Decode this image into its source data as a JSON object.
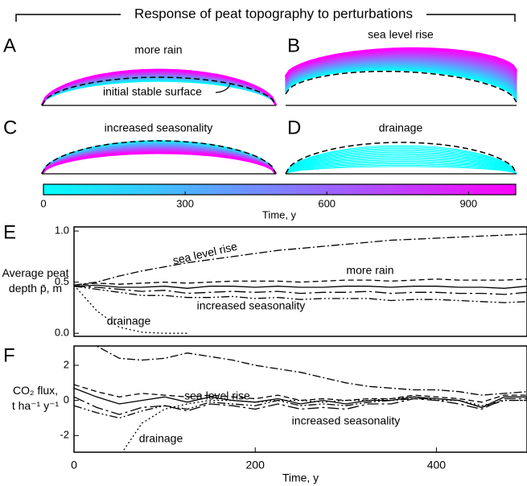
{
  "title": "Response of peat topography to perturbations",
  "profiles": [
    {
      "letter": "A",
      "label": "more rain",
      "annotation": "initial stable surface"
    },
    {
      "letter": "B",
      "label": "sea level rise"
    },
    {
      "letter": "C",
      "label": "increased seasonality"
    },
    {
      "letter": "D",
      "label": "drainage"
    }
  ],
  "colorbar": {
    "label": "Time, y",
    "xlim": [
      0,
      1000
    ],
    "xticks": [
      0,
      300,
      600,
      900
    ],
    "colors": [
      "#00ffff",
      "#ff00ff"
    ]
  },
  "chart_data": [
    {
      "type": "line",
      "letter": "E",
      "ylabel": [
        "Average peat",
        "depth p̄, m"
      ],
      "x": [
        0,
        25,
        50,
        75,
        100,
        125,
        150,
        175,
        200,
        225,
        250,
        275,
        300,
        325,
        350,
        375,
        400,
        425,
        450,
        475,
        500
      ],
      "xlim": [
        0,
        500
      ],
      "ylim": [
        -0.03,
        1.04
      ],
      "yticks": [
        {
          "value": 0,
          "label": "0.0"
        },
        {
          "value": 0.5,
          "label": "0.5"
        },
        {
          "value": 1,
          "label": "1.0"
        }
      ],
      "series": [
        {
          "name": "sea level rise",
          "color": "#000000",
          "dash": "dashdot",
          "values": [
            0.47,
            0.5,
            0.56,
            0.61,
            0.65,
            0.69,
            0.72,
            0.75,
            0.78,
            0.81,
            0.83,
            0.85,
            0.87,
            0.89,
            0.91,
            0.92,
            0.93,
            0.94,
            0.95,
            0.96,
            0.97
          ]
        },
        {
          "name": "more rain",
          "color": "#000000",
          "dash": "dashed",
          "values": [
            0.47,
            0.49,
            0.48,
            0.49,
            0.5,
            0.49,
            0.5,
            0.51,
            0.51,
            0.51,
            0.5,
            0.51,
            0.52,
            0.52,
            0.51,
            0.52,
            0.53,
            0.52,
            0.52,
            0.52,
            0.53
          ]
        },
        {
          "color": "#000000",
          "dash": "solid",
          "values": [
            0.46,
            0.47,
            0.45,
            0.45,
            0.46,
            0.44,
            0.46,
            0.46,
            0.45,
            0.46,
            0.45,
            0.45,
            0.46,
            0.46,
            0.45,
            0.46,
            0.46,
            0.45,
            0.45,
            0.44,
            0.46
          ]
        },
        {
          "name": "increased seasonality",
          "color": "#000000",
          "dash": "longdash",
          "values": [
            0.46,
            0.45,
            0.43,
            0.41,
            0.42,
            0.39,
            0.4,
            0.41,
            0.4,
            0.41,
            0.39,
            0.4,
            0.4,
            0.41,
            0.39,
            0.4,
            0.4,
            0.39,
            0.39,
            0.38,
            0.4
          ]
        },
        {
          "color": "#000000",
          "dash": "dashdotdot",
          "values": [
            0.46,
            0.43,
            0.4,
            0.37,
            0.37,
            0.35,
            0.35,
            0.36,
            0.34,
            0.35,
            0.33,
            0.34,
            0.34,
            0.34,
            0.32,
            0.33,
            0.33,
            0.32,
            0.31,
            0.3,
            0.31
          ]
        },
        {
          "name": "drainage",
          "color": "#000000",
          "dash": "dotted",
          "values": [
            0.47,
            0.22,
            0.06,
            0.01,
            0.0,
            0.0,
            null,
            null,
            null,
            null,
            null,
            null,
            null,
            null,
            null,
            null,
            null,
            null,
            null,
            null,
            null
          ]
        }
      ]
    },
    {
      "type": "line",
      "letter": "F",
      "ylabel": [
        "CO₂ flux,",
        "t ha⁻¹ y⁻¹"
      ],
      "xlabel": "Time, y",
      "x": [
        0,
        25,
        50,
        75,
        100,
        125,
        150,
        175,
        200,
        225,
        250,
        275,
        300,
        325,
        350,
        375,
        400,
        425,
        450,
        475,
        500
      ],
      "xlim": [
        0,
        500
      ],
      "xticks": [
        0,
        200,
        400
      ],
      "ylim": [
        -2.95,
        3.1
      ],
      "yticks": [
        -2,
        0,
        2
      ],
      "series": [
        {
          "name": "sea level rise",
          "color": "#000000",
          "dash": "dashdot",
          "values": [
            3.6,
            3.1,
            2.4,
            2.3,
            2.4,
            2.7,
            2.5,
            2.3,
            2.0,
            1.8,
            1.6,
            1.3,
            1.0,
            0.8,
            0.7,
            0.6,
            0.6,
            0.5,
            0.3,
            0.4,
            0.5
          ]
        },
        {
          "color": "#000000",
          "dash": "dashed",
          "values": [
            0.9,
            0.5,
            0.2,
            0.4,
            0.3,
            0.2,
            0.3,
            0.2,
            0.1,
            0.3,
            0.0,
            0.1,
            0.0,
            0.1,
            0.1,
            0.3,
            0.2,
            0.1,
            -0.1,
            0.3,
            0.3
          ]
        },
        {
          "color": "#000000",
          "dash": "solid",
          "values": [
            0.7,
            0.2,
            -0.2,
            0.0,
            0.2,
            -0.1,
            0.2,
            0.0,
            -0.1,
            0.1,
            -0.2,
            0.0,
            -0.2,
            0.0,
            0.0,
            0.2,
            0.1,
            0.0,
            -0.4,
            0.2,
            0.2
          ]
        },
        {
          "name": "increased seasonality",
          "color": "#000000",
          "dash": "longdash",
          "values": [
            0.2,
            -0.4,
            -0.8,
            -0.4,
            -0.3,
            -0.6,
            -0.2,
            -0.3,
            -0.5,
            -0.2,
            -0.5,
            -0.4,
            -0.5,
            -0.2,
            -0.2,
            0.1,
            0.0,
            -0.2,
            -0.5,
            0.1,
            0.1
          ]
        },
        {
          "color": "#000000",
          "dash": "dashdotdot",
          "values": [
            -0.3,
            -0.7,
            -1.0,
            -0.6,
            -0.3,
            -0.5,
            -0.1,
            -0.2,
            -0.3,
            0.0,
            -0.3,
            -0.2,
            -0.3,
            -0.1,
            0.0,
            0.1,
            0.1,
            0.0,
            -0.4,
            0.0,
            0.0
          ]
        },
        {
          "name": "drainage",
          "color": "#000000",
          "dash": "dotted",
          "values": [
            null,
            null,
            -3.2,
            -1.3,
            -0.5,
            -0.2,
            0.0,
            0.0,
            -0.1,
            0.0,
            0.0,
            -0.1,
            0.0,
            0.0,
            0.1,
            0.2,
            0.0,
            0.0,
            -0.3,
            0.0,
            0.0
          ]
        }
      ]
    }
  ]
}
